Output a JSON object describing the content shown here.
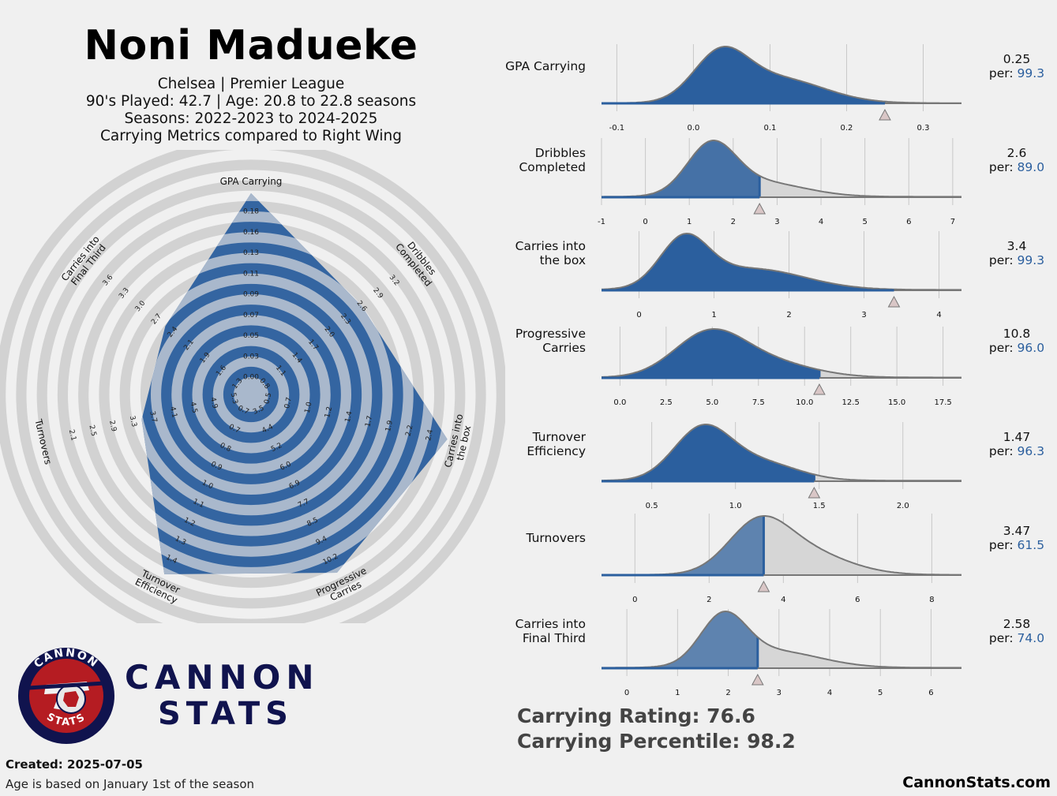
{
  "header": {
    "player_name": "Noni Madueke",
    "team_league": "Chelsea | Premier League",
    "played_age": "90's Played: 42.7 | Age: 20.8 to 22.8 seasons",
    "seasons": "Seasons: 2022-2023 to 2024-2025",
    "comparison": "Carrying Metrics compared to Right Wing"
  },
  "logo": {
    "ring_top": "CANNON",
    "ring_bottom": "STATS",
    "word1": "CANNON",
    "word2": "STATS"
  },
  "summary": {
    "rating": "Carrying Rating: 76.6",
    "percentile": "Carrying Percentile: 98.2"
  },
  "footer": {
    "created": "Created: 2025-07-05",
    "note": "Age is based on January 1st of the season",
    "site": "CannonStats.com"
  },
  "colors": {
    "blue": "#2b5f9e",
    "grey_ring": "#d0d0d0",
    "light_blue": "#a2b2c8",
    "background": "#f0f0f0"
  },
  "chart_data": [
    {
      "type": "radar",
      "title": "Carrying Metrics compared to Right Wing",
      "axes": [
        {
          "name": "GPA Carrying",
          "label": "GPA Carrying",
          "value": 0.25,
          "ticks": [
            "0.00",
            "0.03",
            "0.05",
            "0.07",
            "0.09",
            "0.11",
            "0.13",
            "0.16",
            "0.18"
          ]
        },
        {
          "name": "Dribbles Completed",
          "label": "Dribbles\nCompleted",
          "value": 2.6,
          "ticks": [
            "0.8",
            "1.1",
            "1.4",
            "1.7",
            "2.0",
            "2.3",
            "2.6",
            "2.9",
            "3.2"
          ]
        },
        {
          "name": "Carries into the box",
          "label": "Carries into\nthe box",
          "value": 3.4,
          "ticks": [
            "0.5",
            "0.7",
            "1.0",
            "1.2",
            "1.4",
            "1.7",
            "1.9",
            "2.2",
            "2.4"
          ]
        },
        {
          "name": "Progressive Carries",
          "label": "Progressive\nCarries",
          "value": 10.8,
          "ticks": [
            "3.5",
            "4.4",
            "5.2",
            "6.0",
            "6.9",
            "7.7",
            "8.5",
            "9.4",
            "10.2"
          ]
        },
        {
          "name": "Turnover Efficiency",
          "label": "Turnover\nEfficiency",
          "value": 1.47,
          "ticks": [
            "0.7",
            "0.7",
            "0.8",
            "0.9",
            "1.0",
            "1.1",
            "1.2",
            "1.3",
            "1.4"
          ]
        },
        {
          "name": "Turnovers",
          "label": "Turnovers",
          "value": 3.47,
          "ticks": [
            "5.3",
            "4.9",
            "4.5",
            "4.1",
            "3.7",
            "3.3",
            "2.9",
            "2.5",
            "2.1"
          ]
        },
        {
          "name": "Carries into Final Third",
          "label": "Carries into\nFinal Third",
          "value": 2.58,
          "ticks": [
            "1.3",
            "1.6",
            "1.9",
            "2.1",
            "2.4",
            "2.7",
            "3.0",
            "3.3",
            "3.6"
          ]
        }
      ]
    },
    {
      "type": "density",
      "series": [
        {
          "metric": "GPA Carrying",
          "label": "GPA Carrying",
          "value": 0.25,
          "value_text": "0.25",
          "percentile": "99.3",
          "xlim": [
            -0.12,
            0.35
          ],
          "ticks": [
            -0.1,
            0.0,
            0.1,
            0.2,
            0.3
          ],
          "tick_labels": [
            "-0.1",
            "0.0",
            "0.1",
            "0.2",
            "0.3"
          ],
          "components": [
            [
              0.035,
              0.035,
              1.0
            ],
            [
              0.11,
              0.06,
              0.55
            ]
          ],
          "tail": 0.005
        },
        {
          "metric": "Dribbles Completed",
          "label": "Dribbles\nCompleted",
          "value": 2.6,
          "value_text": "2.6",
          "percentile": "89.0",
          "xlim": [
            -1,
            7.2
          ],
          "ticks": [
            -1,
            0,
            1,
            2,
            3,
            4,
            5,
            6,
            7
          ],
          "tick_labels": [
            "-1",
            "0",
            "1",
            "2",
            "3",
            "4",
            "5",
            "6",
            "7"
          ],
          "components": [
            [
              1.5,
              0.55,
              1.0
            ],
            [
              2.6,
              1.0,
              0.3
            ]
          ],
          "tail": 0.01
        },
        {
          "metric": "Carries into the box",
          "label": "Carries into\nthe box",
          "value": 3.4,
          "value_text": "3.4",
          "percentile": "99.3",
          "xlim": [
            -0.5,
            4.3
          ],
          "ticks": [
            0,
            1,
            2,
            3,
            4
          ],
          "tick_labels": [
            "0",
            "1",
            "2",
            "3",
            "4"
          ],
          "components": [
            [
              0.6,
              0.32,
              1.0
            ],
            [
              1.5,
              0.7,
              0.45
            ]
          ],
          "tail": 0.01
        },
        {
          "metric": "Progressive Carries",
          "label": "Progressive\nCarries",
          "value": 10.8,
          "value_text": "10.8",
          "percentile": "96.0",
          "xlim": [
            -1,
            18.5
          ],
          "ticks": [
            0,
            2.5,
            5,
            7.5,
            10,
            12.5,
            15,
            17.5
          ],
          "tick_labels": [
            "0.0",
            "2.5",
            "5.0",
            "7.5",
            "10.0",
            "12.5",
            "15.0",
            "17.5"
          ],
          "components": [
            [
              4.8,
              1.9,
              1.0
            ],
            [
              8.0,
              2.4,
              0.35
            ]
          ],
          "tail": 0.01
        },
        {
          "metric": "Turnover Efficiency",
          "label": "Turnover\nEfficiency",
          "value": 1.47,
          "value_text": "1.47",
          "percentile": "96.3",
          "xlim": [
            0.2,
            2.35
          ],
          "ticks": [
            0.5,
            1.0,
            1.5,
            2.0
          ],
          "tick_labels": [
            "0.5",
            "1.0",
            "1.5",
            "2.0"
          ],
          "components": [
            [
              0.8,
              0.17,
              1.0
            ],
            [
              1.15,
              0.22,
              0.35
            ]
          ],
          "tail": 0.012
        },
        {
          "metric": "Turnovers",
          "label": "Turnovers",
          "value": 3.47,
          "value_text": "3.47",
          "percentile": "61.5",
          "xlim": [
            -0.9,
            8.8
          ],
          "ticks": [
            0,
            2,
            4,
            6,
            8
          ],
          "tick_labels": [
            "0",
            "2",
            "4",
            "6",
            "8"
          ],
          "components": [
            [
              3.3,
              0.8,
              0.75
            ],
            [
              4.4,
              1.2,
              0.45
            ]
          ],
          "tail": 0.005
        },
        {
          "metric": "Carries into Final Third",
          "label": "Carries into\nFinal Third",
          "value": 2.58,
          "value_text": "2.58",
          "percentile": "74.0",
          "xlim": [
            -0.5,
            6.6
          ],
          "ticks": [
            0,
            1,
            2,
            3,
            4,
            5,
            6
          ],
          "tick_labels": [
            "0",
            "1",
            "2",
            "3",
            "4",
            "5",
            "6"
          ],
          "components": [
            [
              1.9,
              0.45,
              1.0
            ],
            [
              2.9,
              0.9,
              0.35
            ]
          ],
          "tail": 0.01
        }
      ]
    }
  ]
}
